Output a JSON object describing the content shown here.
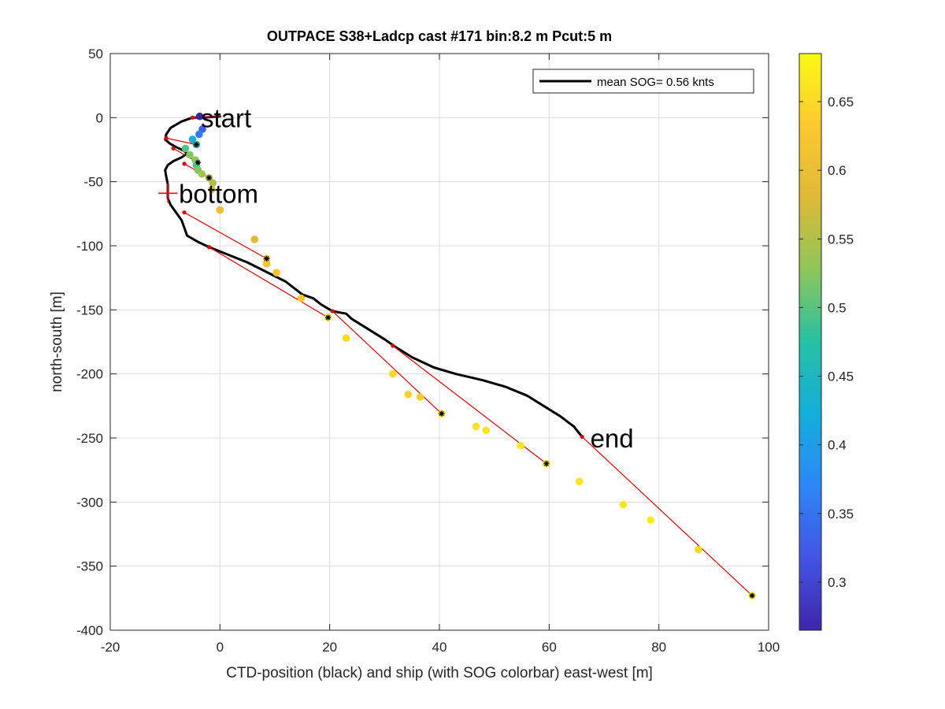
{
  "chart_data": {
    "type": "scatter",
    "title": "OUTPACE S38+Ladcp cast #171 bin:8.2 m  Pcut:5 m",
    "xlabel": "CTD-position (black) and ship (with SOG colorbar) east-west [m]",
    "ylabel": "north-south [m]",
    "xlim": [
      -20,
      100
    ],
    "ylim": [
      -400,
      50
    ],
    "xticks": [
      -20,
      0,
      20,
      40,
      60,
      80,
      100
    ],
    "yticks": [
      50,
      0,
      -50,
      -100,
      -150,
      -200,
      -250,
      -300,
      -350,
      -400
    ],
    "grid": true,
    "legend": {
      "position": "top-right",
      "label": "mean SOG=  0.56 knts"
    },
    "colorbar": {
      "range": [
        0.265,
        0.685
      ],
      "ticks": [
        0.3,
        0.35,
        0.4,
        0.45,
        0.5,
        0.55,
        0.6,
        0.65
      ],
      "colormap": "parula"
    },
    "ctd_track": [
      [
        0,
        1
      ],
      [
        -3,
        0
      ],
      [
        -5,
        0
      ],
      [
        -7,
        -3
      ],
      [
        -9,
        -8
      ],
      [
        -9.8,
        -13
      ],
      [
        -10,
        -17
      ],
      [
        -9.2,
        -20
      ],
      [
        -8,
        -23
      ],
      [
        -6.5,
        -26
      ],
      [
        -6,
        -28
      ],
      [
        -7,
        -31
      ],
      [
        -8.5,
        -34
      ],
      [
        -9.5,
        -37
      ],
      [
        -10,
        -41
      ],
      [
        -9.8,
        -46
      ],
      [
        -9.5,
        -52
      ],
      [
        -9.5,
        -58
      ],
      [
        -9.5,
        -63
      ],
      [
        -9,
        -68
      ],
      [
        -8,
        -74
      ],
      [
        -7,
        -80
      ],
      [
        -6.5,
        -86
      ],
      [
        -6,
        -92
      ],
      [
        -4,
        -97
      ],
      [
        -2,
        -101
      ],
      [
        5,
        -113
      ],
      [
        12,
        -128
      ],
      [
        15,
        -138
      ],
      [
        17,
        -141
      ],
      [
        18.5,
        -146
      ],
      [
        20.5,
        -151
      ],
      [
        23,
        -153
      ],
      [
        24,
        -157
      ],
      [
        27,
        -165
      ],
      [
        30,
        -173
      ],
      [
        32,
        -179
      ],
      [
        35,
        -187
      ],
      [
        39,
        -195
      ],
      [
        43,
        -200
      ],
      [
        48,
        -205
      ],
      [
        52,
        -210
      ],
      [
        56,
        -217
      ],
      [
        59,
        -225
      ],
      [
        62,
        -233
      ],
      [
        64.5,
        -241
      ],
      [
        66,
        -249
      ]
    ],
    "ship_points": [
      {
        "x": -3.7,
        "y": 1,
        "sog": 0.26
      },
      {
        "x": -3.2,
        "y": -9,
        "sog": 0.33
      },
      {
        "x": -3.8,
        "y": -13,
        "sog": 0.36
      },
      {
        "x": -5,
        "y": -17,
        "sog": 0.42
      },
      {
        "x": -4.3,
        "y": -21,
        "sog": 0.46
      },
      {
        "x": -6.3,
        "y": -24,
        "sog": 0.5
      },
      {
        "x": -5.5,
        "y": -29,
        "sog": 0.52
      },
      {
        "x": -4.5,
        "y": -33,
        "sog": 0.53
      },
      {
        "x": -4.3,
        "y": -37,
        "sog": 0.5
      },
      {
        "x": -4,
        "y": -41,
        "sog": 0.52
      },
      {
        "x": -3.3,
        "y": -44,
        "sog": 0.54
      },
      {
        "x": -2,
        "y": -47,
        "sog": 0.55
      },
      {
        "x": -1.3,
        "y": -51,
        "sog": 0.55
      },
      {
        "x": -1.5,
        "y": -56,
        "sog": 0.57
      },
      {
        "x": 0,
        "y": -72,
        "sog": 0.6
      },
      {
        "x": 6.3,
        "y": -95,
        "sog": 0.58
      },
      {
        "x": 8.5,
        "y": -110,
        "sog": 0.62
      },
      {
        "x": 8.5,
        "y": -114,
        "sog": 0.62
      },
      {
        "x": 10.3,
        "y": -121,
        "sog": 0.62
      },
      {
        "x": 14.8,
        "y": -141,
        "sog": 0.63
      },
      {
        "x": 19.7,
        "y": -156,
        "sog": 0.66
      },
      {
        "x": 23,
        "y": -172,
        "sog": 0.65
      },
      {
        "x": 31.5,
        "y": -200,
        "sog": 0.65
      },
      {
        "x": 34.3,
        "y": -216,
        "sog": 0.64
      },
      {
        "x": 36.5,
        "y": -218,
        "sog": 0.64
      },
      {
        "x": 40.4,
        "y": -231,
        "sog": 0.66
      },
      {
        "x": 46.7,
        "y": -241,
        "sog": 0.66
      },
      {
        "x": 48.5,
        "y": -244,
        "sog": 0.66
      },
      {
        "x": 54.8,
        "y": -256,
        "sog": 0.67
      },
      {
        "x": 59.5,
        "y": -270,
        "sog": 0.66
      },
      {
        "x": 65.5,
        "y": -284,
        "sog": 0.66
      },
      {
        "x": 73.5,
        "y": -302,
        "sog": 0.66
      },
      {
        "x": 78.5,
        "y": -314,
        "sog": 0.67
      },
      {
        "x": 87.2,
        "y": -337,
        "sog": 0.65
      },
      {
        "x": 97,
        "y": -373,
        "sog": 0.68
      }
    ],
    "black_markers": [
      [
        -4.3,
        -21
      ],
      [
        -4,
        -35
      ],
      [
        -2,
        -47
      ],
      [
        8.5,
        -110
      ],
      [
        19.7,
        -156
      ],
      [
        40.4,
        -231
      ],
      [
        59.5,
        -270
      ],
      [
        97,
        -373
      ]
    ],
    "red_segments": [
      [
        [
          -5,
          0
        ],
        [
          0,
          1
        ]
      ],
      [
        [
          -9.8,
          -16
        ],
        [
          -4.3,
          -21
        ]
      ],
      [
        [
          -8.5,
          -24
        ],
        [
          -4,
          -35
        ]
      ],
      [
        [
          -6.5,
          -36
        ],
        [
          -2,
          -47
        ]
      ],
      [
        [
          -6.5,
          -74
        ],
        [
          8.5,
          -110
        ]
      ],
      [
        [
          -2,
          -101
        ],
        [
          19.7,
          -156
        ]
      ],
      [
        [
          20.5,
          -151
        ],
        [
          40.4,
          -231
        ]
      ],
      [
        [
          31.5,
          -178
        ],
        [
          59.5,
          -270
        ]
      ],
      [
        [
          66,
          -249
        ],
        [
          97,
          -373
        ]
      ]
    ],
    "annotations": [
      {
        "text": "start",
        "x": -3.5,
        "y": 0
      },
      {
        "text": "bottom",
        "x": -7.5,
        "y": -59
      },
      {
        "text": "end",
        "x": 67.5,
        "y": -250
      }
    ],
    "bottom_marker": {
      "x": -9.5,
      "y": -59
    }
  }
}
